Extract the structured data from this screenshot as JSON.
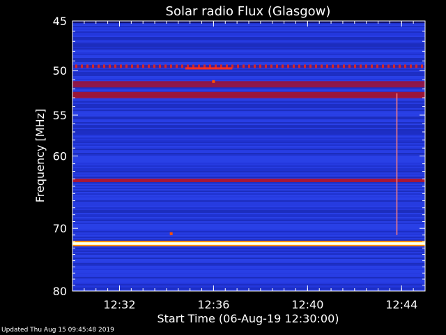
{
  "chart_data": {
    "type": "heatmap",
    "title": "Solar radio Flux (Glasgow)",
    "xlabel": "Start Time (06-Aug-19 12:30:00)",
    "ylabel": "Frequency [MHz]",
    "x_start": "12:30:00",
    "x_end": "12:45:00",
    "xlim_minutes": [
      0,
      15
    ],
    "ylim_mhz": [
      45,
      80
    ],
    "y_axis_scale": "log",
    "y_direction": "increasing downward",
    "x_ticks": [
      "12:32",
      "12:36",
      "12:40",
      "12:44"
    ],
    "y_ticks": [
      45,
      50,
      55,
      60,
      70,
      80
    ],
    "colormap": [
      "#000000",
      "#1a1aaf",
      "#2438e6",
      "#c81018",
      "#ff4500",
      "#ffff80",
      "#ffffff"
    ],
    "background_color": "#2236d8",
    "bands": [
      {
        "freq_mhz": 49.6,
        "intensity": "high",
        "color": "#d42828",
        "pattern": "dashed",
        "note": "periodic bursts across full time range"
      },
      {
        "freq_mhz": 51.5,
        "intensity": "medium",
        "color": "#a01030"
      },
      {
        "freq_mhz": 52.7,
        "intensity": "medium",
        "color": "#b01020"
      },
      {
        "freq_mhz": 63.2,
        "intensity": "high",
        "color": "#c01018"
      },
      {
        "freq_mhz": 72.3,
        "intensity": "max",
        "color": "#ffffc0"
      }
    ],
    "features": [
      {
        "type": "vertical_line",
        "time_min": 13.8,
        "freq_range_mhz": [
          52.5,
          71.0
        ],
        "color": "#ff8080"
      },
      {
        "type": "spot",
        "time_min": 6.0,
        "freq_mhz": 51.2,
        "color": "#ff5000"
      },
      {
        "type": "spot",
        "time_min": 4.2,
        "freq_mhz": 70.8,
        "color": "#ff5000"
      }
    ]
  },
  "footer": "Updated Thu Aug 15 09:45:48 2019"
}
